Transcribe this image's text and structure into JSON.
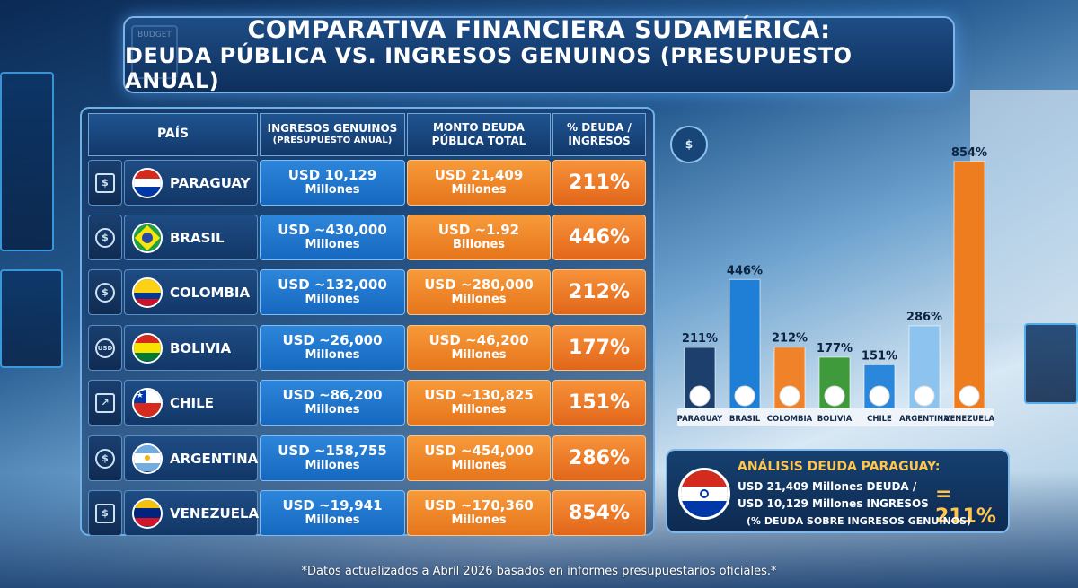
{
  "title": {
    "line1": "COMPARATIVA FINANCIERA SUDAMÉRICA:",
    "line2": "DEUDA PÚBLICA VS. INGRESOS GENUINOS (PRESUPUESTO ANUAL)"
  },
  "budget_icon_text": "BUDGET",
  "table": {
    "headers": {
      "pais": "PAÍS",
      "ingresos": "INGRESOS GENUINOS",
      "ingresos_sub": "(PRESUPUESTO ANUAL)",
      "deuda": "MONTO DEUDA",
      "deuda_sub": "PÚBLICA TOTAL",
      "pct": "% DEUDA /",
      "pct_sub": "INGRESOS"
    },
    "rows": [
      {
        "country": "PARAGUAY",
        "ingresos": "USD 10,129",
        "ingresos_unit": "Millones",
        "deuda": "USD 21,409",
        "deuda_unit": "Millones",
        "pct": "211%",
        "icon": "clipboard-dollar-icon",
        "icon_glyph": "$"
      },
      {
        "country": "BRASIL",
        "ingresos": "USD ~430,000",
        "ingresos_unit": "Millones",
        "deuda": "USD ~1.92",
        "deuda_unit": "Billones",
        "pct": "446%",
        "icon": "dollar-coin-icon",
        "icon_glyph": "$"
      },
      {
        "country": "COLOMBIA",
        "ingresos": "USD ~132,000",
        "ingresos_unit": "Millones",
        "deuda": "USD ~280,000",
        "deuda_unit": "Millones",
        "pct": "212%",
        "icon": "coin-stack-icon",
        "icon_glyph": "$"
      },
      {
        "country": "BOLIVIA",
        "ingresos": "USD ~26,000",
        "ingresos_unit": "Millones",
        "deuda": "USD ~46,200",
        "deuda_unit": "Millones",
        "pct": "177%",
        "icon": "usd-circle-icon",
        "icon_glyph": "USD"
      },
      {
        "country": "CHILE",
        "ingresos": "USD ~86,200",
        "ingresos_unit": "Millones",
        "deuda": "USD ~130,825",
        "deuda_unit": "Millones",
        "pct": "151%",
        "icon": "growth-chart-icon",
        "icon_glyph": "↗"
      },
      {
        "country": "ARGENTINA",
        "ingresos": "USD ~158,755",
        "ingresos_unit": "Millones",
        "deuda": "USD ~454,000",
        "deuda_unit": "Millones",
        "pct": "286%",
        "icon": "money-bag-icon",
        "icon_glyph": "$"
      },
      {
        "country": "VENEZUELA",
        "ingresos": "USD ~19,941",
        "ingresos_unit": "Millones",
        "deuda": "USD ~170,360",
        "deuda_unit": "Millones",
        "pct": "854%",
        "icon": "banknote-icon",
        "icon_glyph": "$"
      }
    ]
  },
  "chart_icon_glyph": "$",
  "chart_data": {
    "type": "bar",
    "categories": [
      "PARAGUAY",
      "BRASIL",
      "COLOMBIA",
      "BOLIVIA",
      "CHILE",
      "ARGENTINA",
      "VENEZUELA"
    ],
    "values": [
      211,
      446,
      212,
      177,
      151,
      286,
      854
    ],
    "data_labels": [
      "211%",
      "446%",
      "212%",
      "177%",
      "151%",
      "286%",
      "854%"
    ],
    "bar_colors": [
      "#1d3f6e",
      "#1f7fd6",
      "#f0822a",
      "#3f9a3c",
      "#2a87dc",
      "#8cc3ef",
      "#ee7d20"
    ],
    "ylim": [
      0,
      900
    ],
    "grid": false,
    "legend": "none"
  },
  "analysis": {
    "title": "ANÁLISIS DEUDA PARAGUAY:",
    "line1": "USD 21,409 Millones DEUDA /",
    "line2": "USD 10,129 Millones INGRESOS",
    "result": "= 211%",
    "note": "(% DEUDA SOBRE INGRESOS GENUINOS)"
  },
  "footnote": "*Datos actualizados a Abril 2026 basados en informes presupuestarios oficiales.*"
}
